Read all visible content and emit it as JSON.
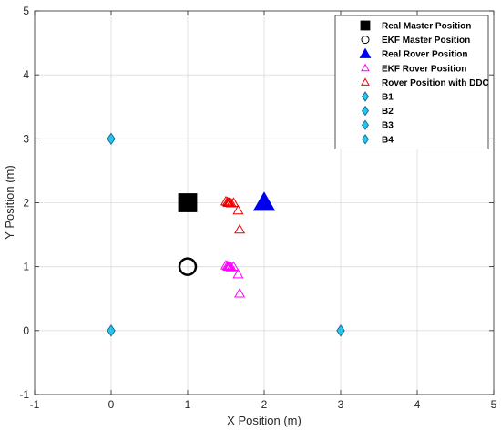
{
  "chart_data": {
    "type": "scatter",
    "xlabel": "X Position (m)",
    "ylabel": "Y Position (m)",
    "xlim": [
      -1,
      5
    ],
    "ylim": [
      -1,
      5
    ],
    "xticks": [
      "-1",
      "0",
      "1",
      "2",
      "3",
      "4",
      "5"
    ],
    "yticks": [
      "-1",
      "0",
      "1",
      "2",
      "3",
      "4",
      "5"
    ],
    "grid": true,
    "legend_position": "top-right",
    "series": [
      {
        "name": "Real Master Position",
        "marker": "square",
        "filled": true,
        "color": "#000000",
        "size": "large",
        "points": [
          [
            1.0,
            2.0
          ]
        ]
      },
      {
        "name": "EKF Master Position",
        "marker": "circle",
        "filled": false,
        "color": "#000000",
        "size": "large",
        "points": [
          [
            1.0,
            1.0
          ]
        ]
      },
      {
        "name": "Real Rover Position",
        "marker": "triangle",
        "filled": true,
        "color": "#0000ee",
        "size": "large",
        "points": [
          [
            2.0,
            2.0
          ]
        ]
      },
      {
        "name": "EKF Rover Position",
        "marker": "triangle",
        "filled": false,
        "color": "#ff00ff",
        "size": "small",
        "points": [
          [
            1.5,
            1.02
          ],
          [
            1.52,
            1.01
          ],
          [
            1.53,
            1.0
          ],
          [
            1.54,
            1.0
          ],
          [
            1.55,
            1.0
          ],
          [
            1.57,
            0.99
          ],
          [
            1.6,
            1.0
          ],
          [
            1.66,
            0.88
          ],
          [
            1.68,
            0.58
          ]
        ]
      },
      {
        "name": "Rover Position with DDC",
        "marker": "triangle",
        "filled": false,
        "color": "#ee0000",
        "size": "small",
        "points": [
          [
            1.5,
            2.02
          ],
          [
            1.52,
            2.01
          ],
          [
            1.53,
            2.0
          ],
          [
            1.54,
            2.0
          ],
          [
            1.55,
            2.0
          ],
          [
            1.57,
            1.99
          ],
          [
            1.6,
            2.0
          ],
          [
            1.66,
            1.88
          ],
          [
            1.68,
            1.58
          ]
        ]
      },
      {
        "name": "B1",
        "marker": "diamond",
        "filled": true,
        "color": "#22c4f0",
        "size": "medium",
        "points": [
          [
            0,
            3
          ]
        ]
      },
      {
        "name": "B2",
        "marker": "diamond",
        "filled": true,
        "color": "#22c4f0",
        "size": "medium",
        "points": [
          [
            3,
            3
          ]
        ]
      },
      {
        "name": "B3",
        "marker": "diamond",
        "filled": true,
        "color": "#22c4f0",
        "size": "medium",
        "points": [
          [
            0,
            0
          ]
        ]
      },
      {
        "name": "B4",
        "marker": "diamond",
        "filled": true,
        "color": "#22c4f0",
        "size": "medium",
        "points": [
          [
            3,
            0
          ]
        ]
      }
    ]
  }
}
